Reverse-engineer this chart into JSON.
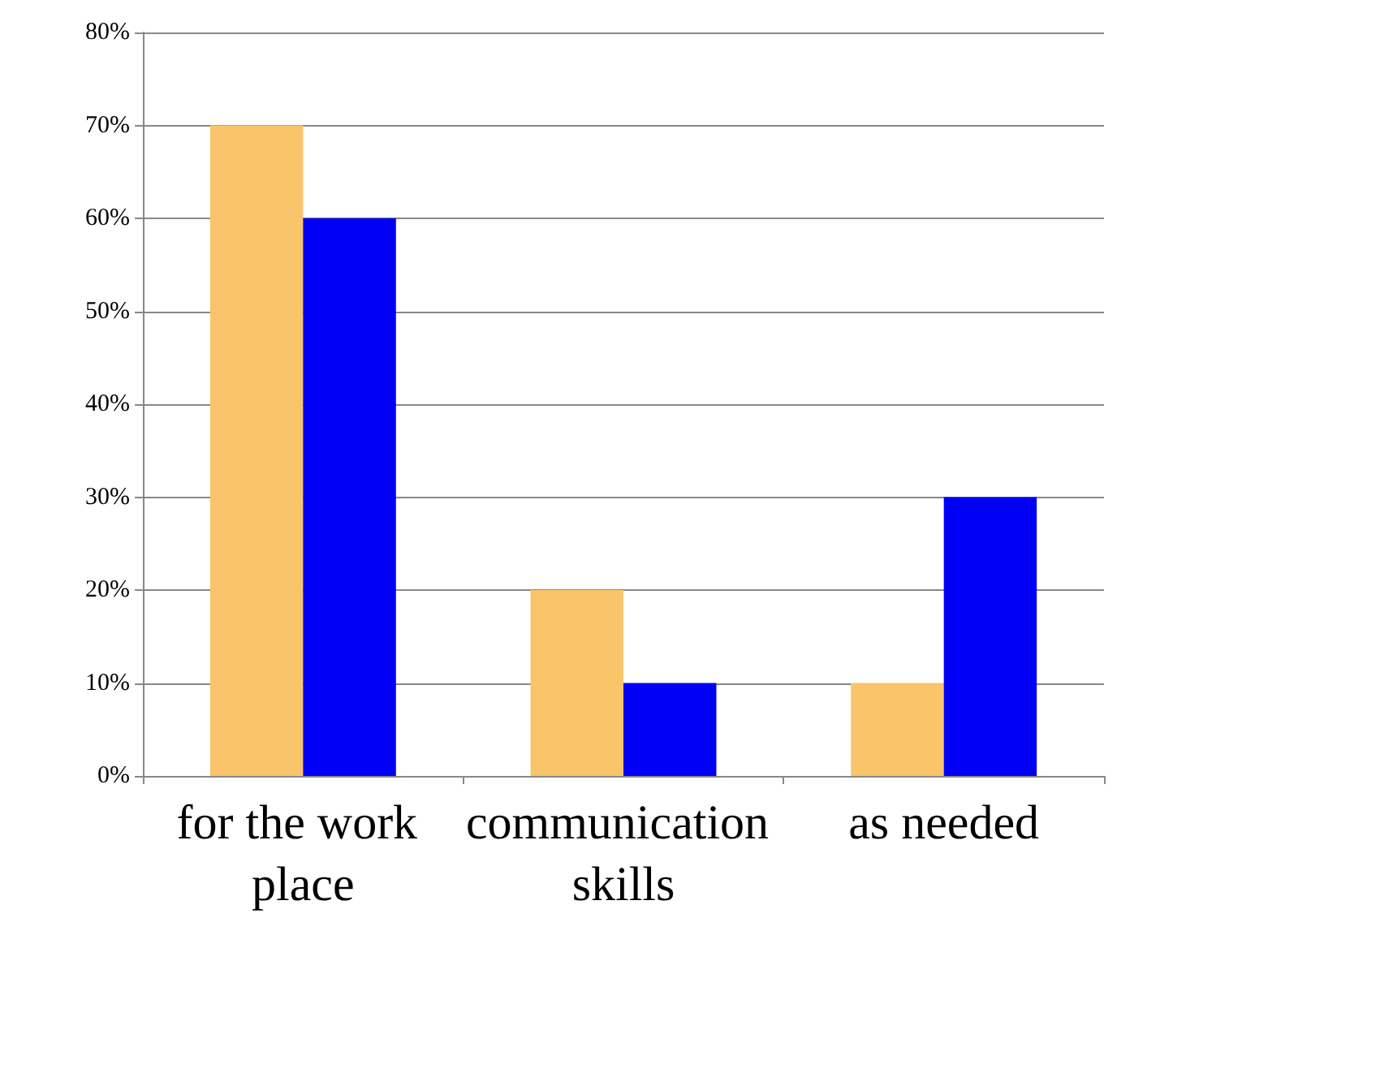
{
  "chart_data": {
    "type": "bar",
    "categories": [
      "for the work place",
      "communication skills",
      "as needed"
    ],
    "series": [
      {
        "color": "#fac46a",
        "values": [
          70,
          20,
          10
        ]
      },
      {
        "color": "#0000f5",
        "values": [
          60,
          10,
          30
        ]
      }
    ],
    "ylim": [
      0,
      80
    ],
    "yticks": [
      {
        "value": 0,
        "label": "0%"
      },
      {
        "value": 10,
        "label": "10%"
      },
      {
        "value": 20,
        "label": "20%"
      },
      {
        "value": 30,
        "label": "30%"
      },
      {
        "value": 40,
        "label": "40%"
      },
      {
        "value": 50,
        "label": "50%"
      },
      {
        "value": 60,
        "label": "60%"
      },
      {
        "value": 70,
        "label": "70%"
      },
      {
        "value": 80,
        "label": "80%"
      }
    ],
    "grid": "y"
  }
}
